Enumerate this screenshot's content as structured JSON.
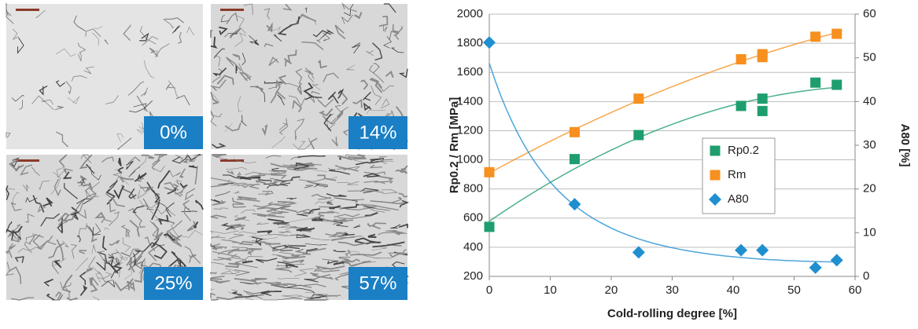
{
  "images": [
    {
      "label": "0%"
    },
    {
      "label": "14%"
    },
    {
      "label": "25%"
    },
    {
      "label": "57%"
    }
  ],
  "chart_data": {
    "type": "scatter",
    "x_label": "Cold-rolling degree [%]",
    "y_label": "Rp0.2 / Rm [MPa]",
    "y2_label": "A80 [%]",
    "xlim": [
      0,
      60
    ],
    "xticks": [
      0,
      10,
      20,
      30,
      40,
      50,
      60
    ],
    "ylim": [
      200,
      2000
    ],
    "yticks": [
      200,
      400,
      600,
      800,
      1000,
      1200,
      1400,
      1600,
      1800,
      2000
    ],
    "y2lim": [
      0,
      60
    ],
    "y2ticks": [
      0,
      10,
      20,
      30,
      40,
      50,
      60
    ],
    "grid": true,
    "series": [
      {
        "name": "Rp0.2",
        "color": "#1e9e6e",
        "marker": "square",
        "x": [
          0,
          14,
          24.5,
          41.3,
          44.8,
          44.8,
          53.5,
          57
        ],
        "values": [
          540,
          1005,
          1170,
          1370,
          1420,
          1335,
          1530,
          1515
        ]
      },
      {
        "name": "Rm",
        "color": "#f7901e",
        "marker": "square",
        "x": [
          0,
          14,
          24.5,
          41.3,
          44.8,
          44.8,
          53.5,
          57
        ],
        "values": [
          915,
          1190,
          1420,
          1690,
          1705,
          1725,
          1845,
          1865
        ]
      },
      {
        "name": "A80",
        "color": "#1f8fcf",
        "marker": "diamond",
        "axis": "y2",
        "x": [
          0,
          14,
          24.5,
          41.3,
          44.8,
          53.5,
          57
        ],
        "values": [
          53.5,
          16.5,
          5.5,
          6,
          6,
          2,
          3.7
        ]
      }
    ]
  }
}
